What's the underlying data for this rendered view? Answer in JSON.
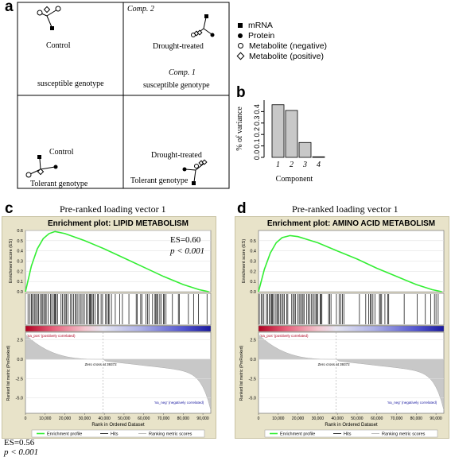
{
  "panels": {
    "a": {
      "letter": "a",
      "comp2_label": "Comp. 2",
      "comp1_label": "Comp. 1",
      "quadrants": {
        "top_left": {
          "condition": "Control",
          "genotype": "susceptible genotype"
        },
        "top_right": {
          "condition": "Drought-treated",
          "genotype": "susceptible genotype"
        },
        "bottom_left": {
          "condition": "Control",
          "genotype": "Tolerant genotype"
        },
        "bottom_right": {
          "condition": "Drought-treated",
          "genotype": "Tolerant genotype"
        }
      },
      "legend": [
        {
          "symbol": "filled-square",
          "label": "mRNA"
        },
        {
          "symbol": "filled-circle",
          "label": "Protein"
        },
        {
          "symbol": "open-circle",
          "label": "Metabolite (negative)"
        },
        {
          "symbol": "open-diamond",
          "label": "Metabolite (positive)"
        }
      ]
    },
    "b": {
      "letter": "b",
      "ylabel": "% of variance",
      "xlabel": "Component"
    },
    "c": {
      "letter": "c",
      "subtitle": "Pre-ranked loading vector 1",
      "es_annotation": "ES=0.60",
      "p_annotation": "p < 0.001"
    },
    "d": {
      "letter": "d",
      "subtitle": "Pre-ranked loading vector 1"
    }
  },
  "footer": {
    "es": "ES=0.56",
    "p": "p < 0.001"
  },
  "chart_data": [
    {
      "type": "bar",
      "categories": [
        "1",
        "2",
        "3",
        "4"
      ],
      "values": [
        0.46,
        0.41,
        0.13,
        0.005
      ],
      "title": "",
      "xlabel": "Component",
      "ylabel": "% of variance",
      "yticks": [
        "0.0",
        "0.1",
        "0.2",
        "0.3",
        "0.4"
      ],
      "ylim": [
        0,
        0.5
      ],
      "bar_color": "#c8c8c8"
    },
    {
      "type": "line",
      "title": "Enrichment plot: LIPID METABOLISM",
      "ylabel": "Enrichment score (ES)",
      "xlabel": "Rank in Ordered Dataset",
      "ylim": [
        0,
        0.6
      ],
      "yticks": [
        "0.0",
        "0.1",
        "0.2",
        "0.3",
        "0.4",
        "0.5",
        "0.6"
      ],
      "x": [
        0,
        3000,
        6000,
        9000,
        12000,
        15000,
        20000,
        30000,
        40000,
        50000,
        60000,
        70000,
        80000,
        88000,
        93000
      ],
      "y": [
        0.0,
        0.25,
        0.42,
        0.52,
        0.57,
        0.59,
        0.57,
        0.5,
        0.42,
        0.33,
        0.24,
        0.15,
        0.07,
        0.02,
        0.0
      ],
      "color": "#33ee33",
      "ranked_ylabel": "Ranked list metric (PreRanked)",
      "ranked_yticks": [
        "2.5",
        "0.0",
        "-2.5",
        "-5.0"
      ],
      "ranked_ylim": [
        -7,
        3.5
      ],
      "xticks": [
        "0",
        "10,000",
        "20,000",
        "30,000",
        "40,000",
        "50,000",
        "60,000",
        "70,000",
        "80,000",
        "90,000"
      ],
      "xlim": [
        0,
        94000
      ],
      "pos_label": "'na_pos' (positively correlated)",
      "neg_label": "'na_neg' (negatively correlated)",
      "zero_cross": "Zero cross at 39372",
      "legend": [
        "Enrichment profile",
        "Hits",
        "Ranking metric scores"
      ]
    },
    {
      "type": "line",
      "title": "Enrichment plot: AMINO ACID METABOLISM",
      "ylabel": "Enrichment score (ES)",
      "xlabel": "Rank in Ordered Dataset",
      "ylim": [
        0,
        0.6
      ],
      "yticks": [
        "0.0",
        "0.1",
        "0.2",
        "0.3",
        "0.4",
        "0.5"
      ],
      "x": [
        0,
        3000,
        6000,
        9000,
        12000,
        16000,
        20000,
        30000,
        40000,
        50000,
        60000,
        70000,
        80000,
        88000,
        93000
      ],
      "y": [
        0.0,
        0.22,
        0.38,
        0.48,
        0.53,
        0.55,
        0.54,
        0.48,
        0.4,
        0.32,
        0.23,
        0.15,
        0.07,
        0.02,
        0.0
      ],
      "color": "#33ee33",
      "ranked_ylabel": "Ranked list metric (PreRanked)",
      "ranked_yticks": [
        "2.5",
        "0.0",
        "-2.5",
        "-5.0"
      ],
      "ranked_ylim": [
        -7,
        3.5
      ],
      "xticks": [
        "0",
        "10,000",
        "20,000",
        "30,000",
        "40,000",
        "50,000",
        "60,000",
        "70,000",
        "80,000",
        "90,000"
      ],
      "xlim": [
        0,
        94000
      ],
      "pos_label": "'na_pos' (positively correlated)",
      "neg_label": "'na_neg' (negatively correlated)",
      "zero_cross": "Zero cross at 39372",
      "legend": [
        "Enrichment profile",
        "Hits",
        "Ranking metric scores"
      ]
    }
  ]
}
